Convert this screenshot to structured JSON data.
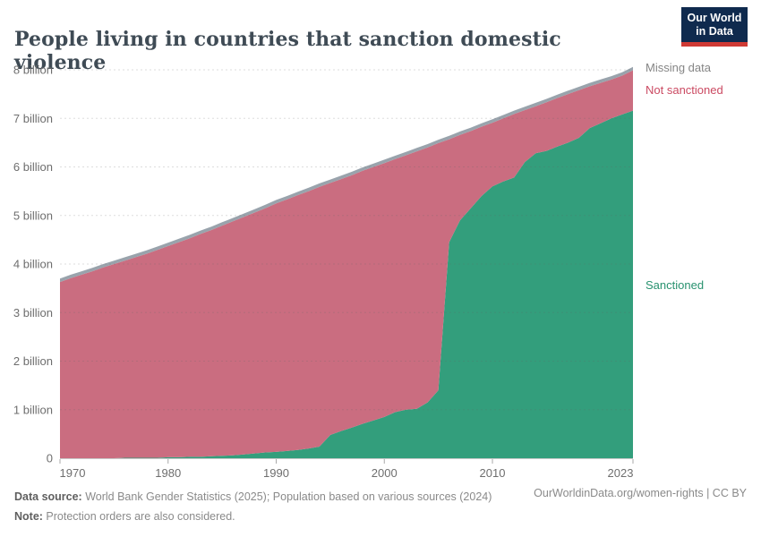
{
  "header": {
    "title": "People living in countries that sanction domestic violence",
    "logo": {
      "line1": "Our World",
      "line2": "in Data"
    }
  },
  "colors": {
    "logo_background": "#0f2a4e",
    "logo_bar": "#cf3a34",
    "title_text": "#3f4b55",
    "axis_text": "#6e6e6e",
    "grid": "#646464"
  },
  "chart_data": {
    "type": "area",
    "stacked": true,
    "title": "People living in countries that sanction domestic violence",
    "xlabel": "",
    "ylabel": "",
    "x": [
      1970,
      1971,
      1972,
      1973,
      1974,
      1975,
      1976,
      1977,
      1978,
      1979,
      1980,
      1981,
      1982,
      1983,
      1984,
      1985,
      1986,
      1987,
      1988,
      1989,
      1990,
      1991,
      1992,
      1993,
      1994,
      1995,
      1996,
      1997,
      1998,
      1999,
      2000,
      2001,
      2002,
      2003,
      2004,
      2005,
      2006,
      2007,
      2008,
      2009,
      2010,
      2011,
      2012,
      2013,
      2014,
      2015,
      2016,
      2017,
      2018,
      2019,
      2020,
      2021,
      2022,
      2023
    ],
    "unit": "billion people",
    "series": [
      {
        "name": "Sanctioned",
        "color": "#339e7c",
        "label_color": "#28926f",
        "values": [
          0,
          0,
          0,
          0,
          0,
          0,
          0.01,
          0.01,
          0.01,
          0.01,
          0.02,
          0.02,
          0.03,
          0.03,
          0.04,
          0.05,
          0.06,
          0.08,
          0.1,
          0.12,
          0.13,
          0.15,
          0.17,
          0.2,
          0.24,
          0.48,
          0.56,
          0.63,
          0.71,
          0.78,
          0.85,
          0.95,
          1.0,
          1.02,
          1.15,
          1.4,
          4.45,
          4.9,
          5.15,
          5.4,
          5.6,
          5.7,
          5.78,
          6.1,
          6.28,
          6.33,
          6.42,
          6.5,
          6.6,
          6.8,
          6.9,
          7.0,
          7.08,
          7.16
        ]
      },
      {
        "name": "Not sanctioned",
        "color": "#ca6d80",
        "label_color": "#cb4a62",
        "values": [
          3.63,
          3.71,
          3.78,
          3.85,
          3.93,
          4.0,
          4.06,
          4.13,
          4.2,
          4.28,
          4.35,
          4.43,
          4.5,
          4.59,
          4.66,
          4.74,
          4.82,
          4.89,
          4.96,
          5.03,
          5.12,
          5.18,
          5.25,
          5.3,
          5.35,
          5.19,
          5.19,
          5.2,
          5.21,
          5.22,
          5.23,
          5.21,
          5.24,
          5.3,
          5.25,
          5.09,
          2.12,
          1.76,
          1.59,
          1.43,
          1.31,
          1.3,
          1.31,
          1.07,
          0.97,
          1.0,
          1.0,
          1.0,
          0.98,
          0.86,
          0.83,
          0.8,
          0.8,
          0.83
        ]
      },
      {
        "name": "Missing data",
        "color": "#99a3ac",
        "label_color": "#858585",
        "values": [
          0.07,
          0.07,
          0.07,
          0.07,
          0.07,
          0.07,
          0.07,
          0.07,
          0.07,
          0.07,
          0.07,
          0.07,
          0.07,
          0.07,
          0.07,
          0.07,
          0.07,
          0.07,
          0.07,
          0.07,
          0.07,
          0.07,
          0.07,
          0.07,
          0.07,
          0.07,
          0.07,
          0.07,
          0.07,
          0.07,
          0.07,
          0.07,
          0.07,
          0.07,
          0.07,
          0.07,
          0.07,
          0.07,
          0.07,
          0.07,
          0.07,
          0.07,
          0.07,
          0.07,
          0.07,
          0.07,
          0.07,
          0.07,
          0.07,
          0.07,
          0.07,
          0.07,
          0.07,
          0.07
        ]
      }
    ],
    "yticks": [
      {
        "v": 0,
        "label": "0"
      },
      {
        "v": 1,
        "label": "1 billion"
      },
      {
        "v": 2,
        "label": "2 billion"
      },
      {
        "v": 3,
        "label": "3 billion"
      },
      {
        "v": 4,
        "label": "4 billion"
      },
      {
        "v": 5,
        "label": "5 billion"
      },
      {
        "v": 6,
        "label": "6 billion"
      },
      {
        "v": 7,
        "label": "7 billion"
      },
      {
        "v": 8,
        "label": "8 billion"
      }
    ],
    "xticks": [
      1970,
      1980,
      1990,
      2000,
      2010,
      2023
    ],
    "ylim": [
      0,
      8
    ],
    "grid": "horizontal-dashed",
    "legend_position": "right-of-plot"
  },
  "footer": {
    "data_source_label": "Data source:",
    "data_source_text": " World Bank Gender Statistics (2025); Population based on various sources (2024)",
    "note_label": "Note:",
    "note_text": " Protection orders are also considered.",
    "link": "OurWorldinData.org/women-rights | CC BY"
  }
}
